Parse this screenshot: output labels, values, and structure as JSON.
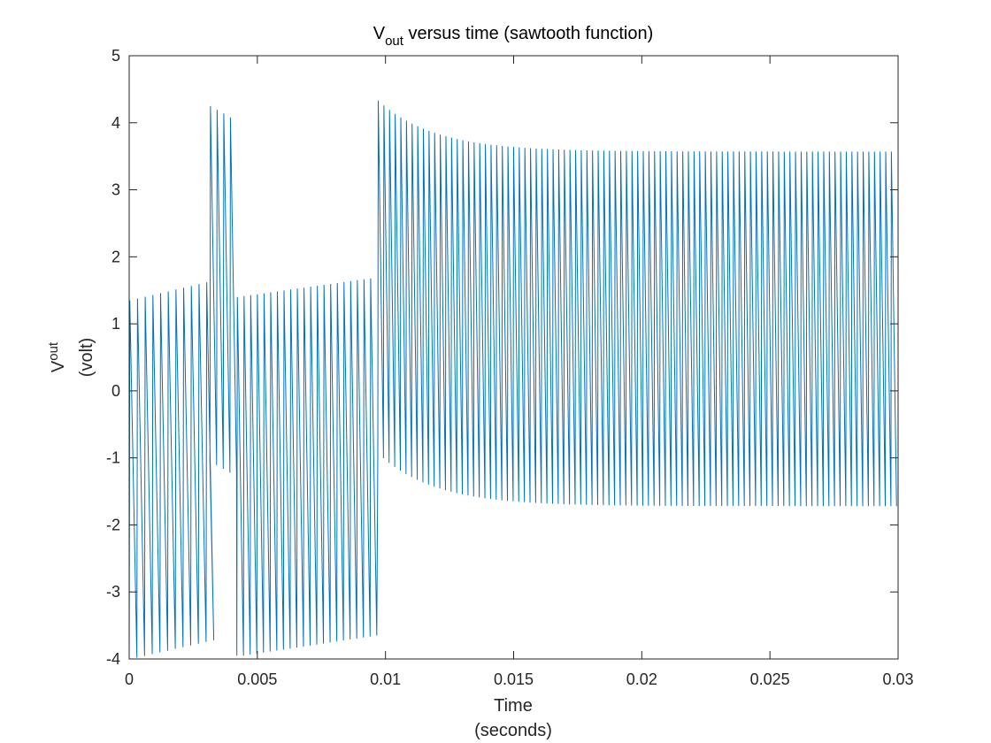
{
  "chart_data": {
    "type": "line",
    "title": {
      "main_symbol": "V",
      "main_subscript": "out",
      "main_rest": " versus time (sawtooth function)"
    },
    "xlabel": {
      "line1": "Time",
      "line2": "(seconds)"
    },
    "ylabel": {
      "symbol": "V",
      "subscript": "out",
      "unit": "(volt)"
    },
    "xlim": [
      0,
      0.03
    ],
    "ylim": [
      -4,
      5
    ],
    "x_ticks": [
      0,
      0.005,
      0.01,
      0.015,
      0.02,
      0.025,
      0.03
    ],
    "x_tick_labels": [
      "0",
      "0.005",
      "0.01",
      "0.015",
      "0.02",
      "0.025",
      "0.03"
    ],
    "y_ticks": [
      -4,
      -3,
      -2,
      -1,
      0,
      1,
      2,
      3,
      4,
      5
    ],
    "y_tick_labels": [
      "-4",
      "-3",
      "-2",
      "-1",
      "0",
      "1",
      "2",
      "3",
      "4",
      "5"
    ],
    "grid": false,
    "line_color": "#0072BD",
    "series": [
      {
        "name": "Vout",
        "segments": [
          {
            "t_start": 0.0,
            "t_end": 0.00315,
            "period": 0.0003,
            "peak_start": 1.35,
            "peak_end": 1.62,
            "trough_start": -3.98,
            "trough_end": -3.72
          },
          {
            "t_start": 0.00315,
            "t_end": 0.0042,
            "period": 0.00026,
            "peak_start": 4.25,
            "peak_end": 4.08,
            "trough_start": -1.05,
            "trough_end": -1.22
          },
          {
            "t_start": 0.0042,
            "t_end": 0.0097,
            "period": 0.00026,
            "peak_start": 1.4,
            "peak_end": 1.68,
            "trough_start": -3.95,
            "trough_end": -3.65
          },
          {
            "t_start": 0.0097,
            "t_end": 0.03,
            "period": 0.00022,
            "peak_start": 4.33,
            "peak_end": 3.57,
            "trough_start": -0.93,
            "trough_end": -1.72,
            "decay_tau": 0.0022
          }
        ]
      }
    ]
  }
}
